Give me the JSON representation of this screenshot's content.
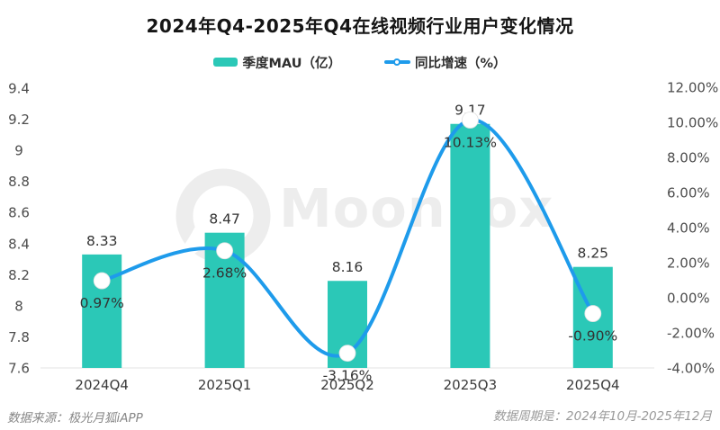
{
  "title": "2024年Q4-2025年Q4在线视频行业用户变化情况",
  "legend": {
    "mau": {
      "label": "季度MAU（亿）"
    },
    "growth": {
      "label": "同比增速（%）"
    }
  },
  "watermark": {
    "text": "MoonFox"
  },
  "footer": {
    "source": "数据来源：极光月狐iAPP",
    "period": "数据周期是：2024年10月-2025年12月"
  },
  "colors": {
    "bar": "#2bc8b7",
    "line": "#1e9beb",
    "marker_fill": "#ffffff",
    "marker_edge": "#e2e2e2",
    "axis_line": "#e3e3e3",
    "tick_text": "#4d4d4d",
    "label_text": "#333333",
    "watermark": "#ededed"
  },
  "chart_data": {
    "type": "combo-bar-line",
    "title": "2024年Q4-2025年Q4在线视频行业用户变化情况",
    "categories": [
      "2024Q4",
      "2025Q1",
      "2025Q2",
      "2025Q3",
      "2025Q4"
    ],
    "series": [
      {
        "name": "季度MAU（亿）",
        "type": "bar",
        "axis": "left",
        "values": [
          8.33,
          8.47,
          8.16,
          9.17,
          8.25
        ],
        "labels": [
          "8.33",
          "8.47",
          "8.16",
          "9.17",
          "8.25"
        ]
      },
      {
        "name": "同比增速（%）",
        "type": "line",
        "axis": "right",
        "values": [
          0.97,
          2.68,
          -3.16,
          10.13,
          -0.9
        ],
        "labels": [
          "0.97%",
          "2.68%",
          "-3.16%",
          "10.13%",
          "-0.90%"
        ]
      }
    ],
    "left_axis": {
      "min": 7.6,
      "max": 9.4,
      "ticks": [
        {
          "v": 9.4,
          "label": "9.4"
        },
        {
          "v": 9.2,
          "label": "9.2"
        },
        {
          "v": 9.0,
          "label": "9"
        },
        {
          "v": 8.8,
          "label": "8.8"
        },
        {
          "v": 8.6,
          "label": "8.6"
        },
        {
          "v": 8.4,
          "label": "8.4"
        },
        {
          "v": 8.2,
          "label": "8.2"
        },
        {
          "v": 8.0,
          "label": "8"
        },
        {
          "v": 7.8,
          "label": "7.8"
        },
        {
          "v": 7.6,
          "label": "7.6"
        }
      ]
    },
    "right_axis": {
      "min": -4,
      "max": 12,
      "ticks": [
        {
          "v": 12,
          "label": "12.00%"
        },
        {
          "v": 10,
          "label": "10.00%"
        },
        {
          "v": 8,
          "label": "8.00%"
        },
        {
          "v": 6,
          "label": "6.00%"
        },
        {
          "v": 4,
          "label": "4.00%"
        },
        {
          "v": 2,
          "label": "2.00%"
        },
        {
          "v": 0,
          "label": "0.00%"
        },
        {
          "v": -2,
          "label": "-2.00%"
        },
        {
          "v": -4,
          "label": "-4.00%"
        }
      ]
    },
    "grid": false,
    "legend_position": "top"
  }
}
